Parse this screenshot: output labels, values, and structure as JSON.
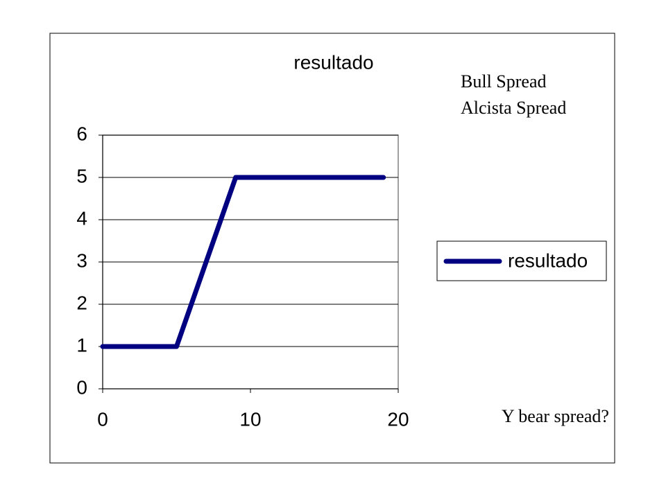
{
  "chart_data": {
    "type": "line",
    "title": "resultado",
    "x": [
      0,
      1,
      2,
      3,
      4,
      5,
      6,
      7,
      8,
      9,
      10,
      11,
      12,
      13,
      14,
      15,
      16,
      17,
      18,
      19
    ],
    "series": [
      {
        "name": "resultado",
        "color": "#000080",
        "values": [
          1,
          1,
          1,
          1,
          1,
          1,
          2,
          3,
          4,
          5,
          5,
          5,
          5,
          5,
          5,
          5,
          5,
          5,
          5,
          5
        ]
      }
    ],
    "xlim": [
      0,
      20
    ],
    "xticks": [
      0,
      10,
      20
    ],
    "ylim": [
      0,
      6
    ],
    "yticks": [
      0,
      1,
      2,
      3,
      4,
      5,
      6
    ],
    "grid": true,
    "legend": "right",
    "annotations": [
      "Bull Spread",
      "Alcista Spread",
      "Y bear spread?"
    ]
  }
}
